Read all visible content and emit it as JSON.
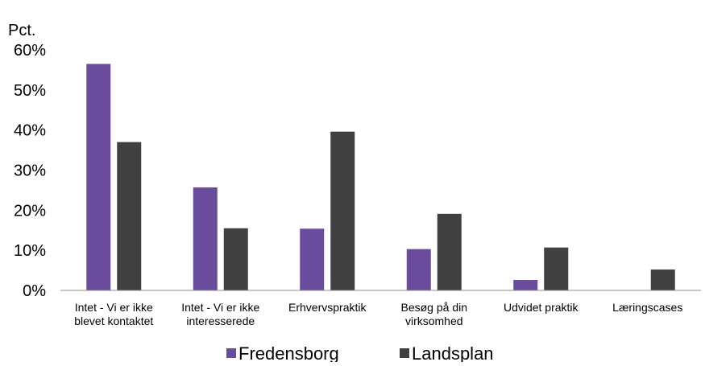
{
  "chart_data": {
    "type": "bar",
    "unit_label": "Pct.",
    "categories": [
      [
        "Intet - Vi er ikke",
        "blevet kontaktet"
      ],
      [
        "Intet - Vi er ikke",
        "interesserede"
      ],
      [
        "Erhvervspraktik"
      ],
      [
        "Besøg på din",
        "virksomhed"
      ],
      [
        "Udvidet praktik"
      ],
      [
        "Læringscases"
      ]
    ],
    "series": [
      {
        "name": "Fredensborg",
        "color": "#6a4c9c",
        "values": [
          56.5,
          25.7,
          15.4,
          10.3,
          2.6,
          0
        ]
      },
      {
        "name": "Landsplan",
        "color": "#404040",
        "values": [
          37.0,
          15.5,
          39.6,
          19.1,
          10.7,
          5.2
        ]
      }
    ],
    "ylim": [
      0,
      60
    ],
    "yticks": [
      "0%",
      "10%",
      "20%",
      "30%",
      "40%",
      "50%",
      "60%"
    ],
    "grid": false,
    "legend_position": "bottom"
  }
}
